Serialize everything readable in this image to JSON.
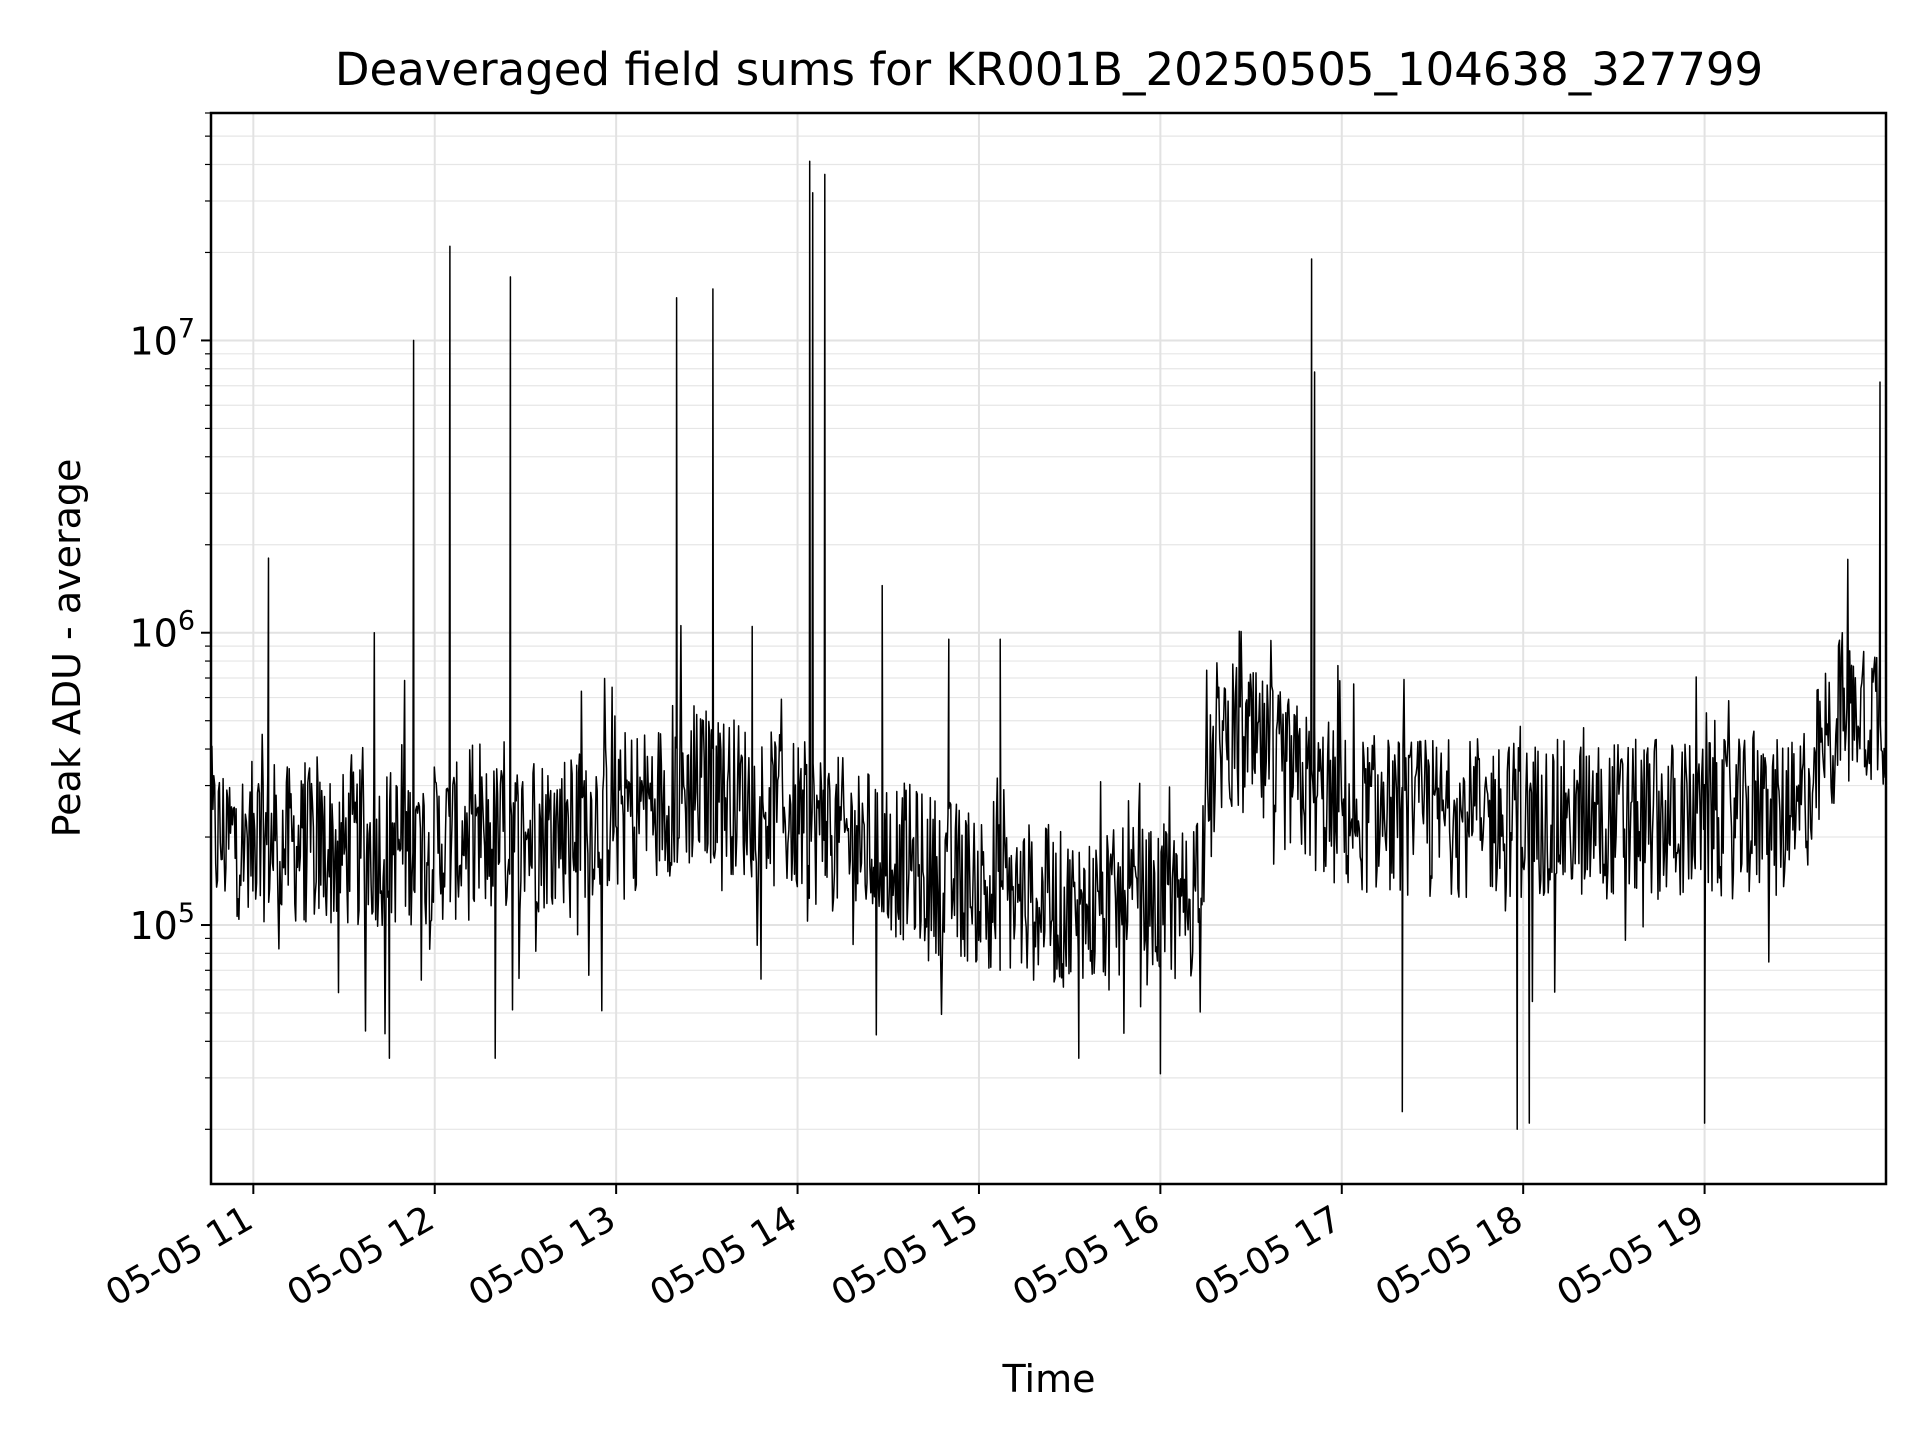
{
  "chart_data": {
    "type": "line",
    "title": "Deaveraged field sums for KR001B_20250505_104638_327799",
    "xlabel": "Time",
    "ylabel": "Peak ADU - average",
    "yscale": "log",
    "xlim": [
      "2025-05-05 10:46",
      "2025-05-05 20:00"
    ],
    "ylim": [
      13000,
      60000000
    ],
    "x_ticks": [
      "05-05 11",
      "05-05 12",
      "05-05 13",
      "05-05 14",
      "05-05 15",
      "05-05 16",
      "05-05 17",
      "05-05 18",
      "05-05 19"
    ],
    "y_ticks": [
      {
        "base": "10",
        "exp": "5",
        "value": 100000
      },
      {
        "base": "10",
        "exp": "6",
        "value": 1000000
      },
      {
        "base": "10",
        "exp": "7",
        "value": 10000000
      }
    ],
    "grid": true,
    "line_color": "#000000",
    "baseline_trend": [
      {
        "t": "2025-05-05 10:46",
        "y": 200000
      },
      {
        "t": "2025-05-05 11:30",
        "y": 180000
      },
      {
        "t": "2025-05-05 12:30",
        "y": 200000
      },
      {
        "t": "2025-05-05 13:30",
        "y": 300000
      },
      {
        "t": "2025-05-05 14:00",
        "y": 230000
      },
      {
        "t": "2025-05-05 14:45",
        "y": 150000
      },
      {
        "t": "2025-05-05 15:30",
        "y": 110000
      },
      {
        "t": "2025-05-05 16:10",
        "y": 120000
      },
      {
        "t": "2025-05-05 16:20",
        "y": 450000
      },
      {
        "t": "2025-05-05 16:30",
        "y": 400000
      },
      {
        "t": "2025-05-05 17:00",
        "y": 240000
      },
      {
        "t": "2025-05-05 18:00",
        "y": 230000
      },
      {
        "t": "2025-05-05 19:30",
        "y": 230000
      },
      {
        "t": "2025-05-05 19:45",
        "y": 550000
      },
      {
        "t": "2025-05-05 20:00",
        "y": 560000
      }
    ],
    "spikes": [
      {
        "t": "2025-05-05 11:05",
        "y": 1800000
      },
      {
        "t": "2025-05-05 11:40",
        "y": 1000000
      },
      {
        "t": "2025-05-05 11:53",
        "y": 10000000
      },
      {
        "t": "2025-05-05 12:05",
        "y": 21000000
      },
      {
        "t": "2025-05-05 12:25",
        "y": 16500000
      },
      {
        "t": "2025-05-05 13:20",
        "y": 14000000
      },
      {
        "t": "2025-05-05 13:32",
        "y": 15000000
      },
      {
        "t": "2025-05-05 13:45",
        "y": 1050000
      },
      {
        "t": "2025-05-05 14:04",
        "y": 41000000
      },
      {
        "t": "2025-05-05 14:05",
        "y": 32000000
      },
      {
        "t": "2025-05-05 14:09",
        "y": 37000000
      },
      {
        "t": "2025-05-05 14:28",
        "y": 1450000
      },
      {
        "t": "2025-05-05 14:50",
        "y": 950000
      },
      {
        "t": "2025-05-05 15:07",
        "y": 950000
      },
      {
        "t": "2025-05-05 16:50",
        "y": 19000000
      },
      {
        "t": "2025-05-05 16:51",
        "y": 7800000
      },
      {
        "t": "2025-05-05 19:58",
        "y": 7200000
      }
    ],
    "dips": [
      {
        "t": "2025-05-05 11:45",
        "y": 35000
      },
      {
        "t": "2025-05-05 12:20",
        "y": 35000
      },
      {
        "t": "2025-05-05 15:33",
        "y": 35000
      },
      {
        "t": "2025-05-05 16:00",
        "y": 31000
      },
      {
        "t": "2025-05-05 17:20",
        "y": 23000
      },
      {
        "t": "2025-05-05 17:58",
        "y": 20000
      },
      {
        "t": "2025-05-05 18:02",
        "y": 21000
      },
      {
        "t": "2025-05-05 19:00",
        "y": 21000
      }
    ]
  }
}
